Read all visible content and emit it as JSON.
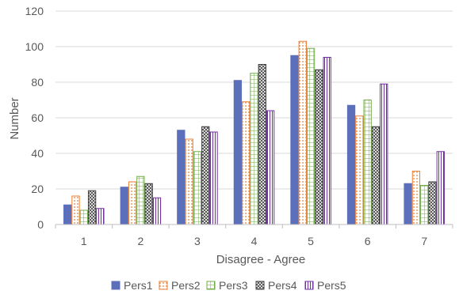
{
  "chart_data": {
    "type": "bar",
    "categories": [
      "1",
      "2",
      "3",
      "4",
      "5",
      "6",
      "7"
    ],
    "series": [
      {
        "name": "Pers1",
        "values": [
          11,
          21,
          53,
          81,
          95,
          67,
          23
        ],
        "color": "#5b6fba",
        "pattern": "solid"
      },
      {
        "name": "Pers2",
        "values": [
          16,
          24,
          48,
          69,
          103,
          61,
          30
        ],
        "color": "#ed7d31",
        "pattern": "dots"
      },
      {
        "name": "Pers3",
        "values": [
          8,
          27,
          41,
          85,
          99,
          70,
          22
        ],
        "color": "#70ad47",
        "pattern": "grid"
      },
      {
        "name": "Pers4",
        "values": [
          19,
          23,
          55,
          90,
          87,
          55,
          24
        ],
        "color": "#404040",
        "pattern": "diamond"
      },
      {
        "name": "Pers5",
        "values": [
          9,
          15,
          52,
          64,
          94,
          79,
          41
        ],
        "color": "#7030a0",
        "pattern": "vlines"
      }
    ],
    "xlabel": "Disagree - Agree",
    "ylabel": "Number",
    "ylim": [
      0,
      120
    ],
    "yticks": [
      "0",
      "20",
      "40",
      "60",
      "80",
      "100",
      "120"
    ],
    "grid": true,
    "legend_position": "bottom"
  }
}
